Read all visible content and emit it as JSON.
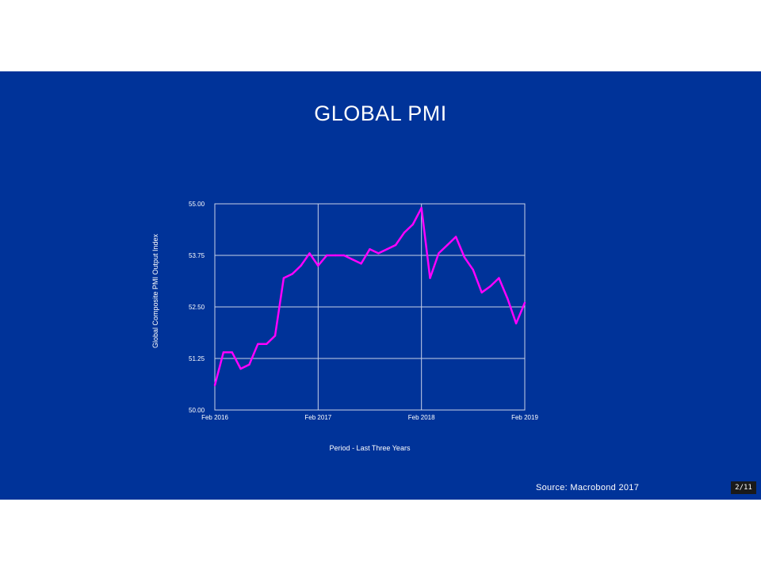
{
  "slide": {
    "title": "GLOBAL PMI",
    "source": "Source: Macrobond 2017",
    "page_indicator": "2/11"
  },
  "colors": {
    "background": "#003399",
    "line": "#ff00ff",
    "grid": "#c8d0e8",
    "text": "#ffffff"
  },
  "chart_data": {
    "type": "line",
    "title": "",
    "xlabel": "Period - Last Three Years",
    "ylabel": "Global Composite PMI Output Index",
    "ylim": [
      50.0,
      55.0
    ],
    "y_ticks": [
      "50.00",
      "51.25",
      "52.50",
      "53.75",
      "55.00"
    ],
    "x_range": [
      "2016-02",
      "2019-02"
    ],
    "x_ticks": [
      {
        "date": "2016-02",
        "label": "Feb 2016"
      },
      {
        "date": "2017-02",
        "label": "Feb 2017"
      },
      {
        "date": "2018-02",
        "label": "Feb 2018"
      },
      {
        "date": "2019-02",
        "label": "Feb 2019"
      }
    ],
    "grid": true,
    "legend": "none",
    "series": [
      {
        "x": [
          "2016-02",
          "2016-03",
          "2016-04",
          "2016-05",
          "2016-06",
          "2016-07",
          "2016-08",
          "2016-09",
          "2016-10",
          "2016-11",
          "2016-12",
          "2017-01",
          "2017-02",
          "2017-03",
          "2017-04",
          "2017-05",
          "2017-06",
          "2017-07",
          "2017-08",
          "2017-09",
          "2017-10",
          "2017-11",
          "2017-12",
          "2018-01",
          "2018-02",
          "2018-03",
          "2018-04",
          "2018-05",
          "2018-06",
          "2018-07",
          "2018-08",
          "2018-09",
          "2018-10",
          "2018-11",
          "2018-12",
          "2019-01",
          "2019-02"
        ],
        "values": [
          50.6,
          51.4,
          51.4,
          51.0,
          51.1,
          51.6,
          51.6,
          51.8,
          53.2,
          53.3,
          53.5,
          53.8,
          53.5,
          53.75,
          53.75,
          53.75,
          53.65,
          53.55,
          53.9,
          53.8,
          53.9,
          54.0,
          54.3,
          54.5,
          54.9,
          53.2,
          53.8,
          54.0,
          54.2,
          53.7,
          53.4,
          52.85,
          53.0,
          53.2,
          52.7,
          52.1,
          52.6
        ]
      }
    ]
  }
}
